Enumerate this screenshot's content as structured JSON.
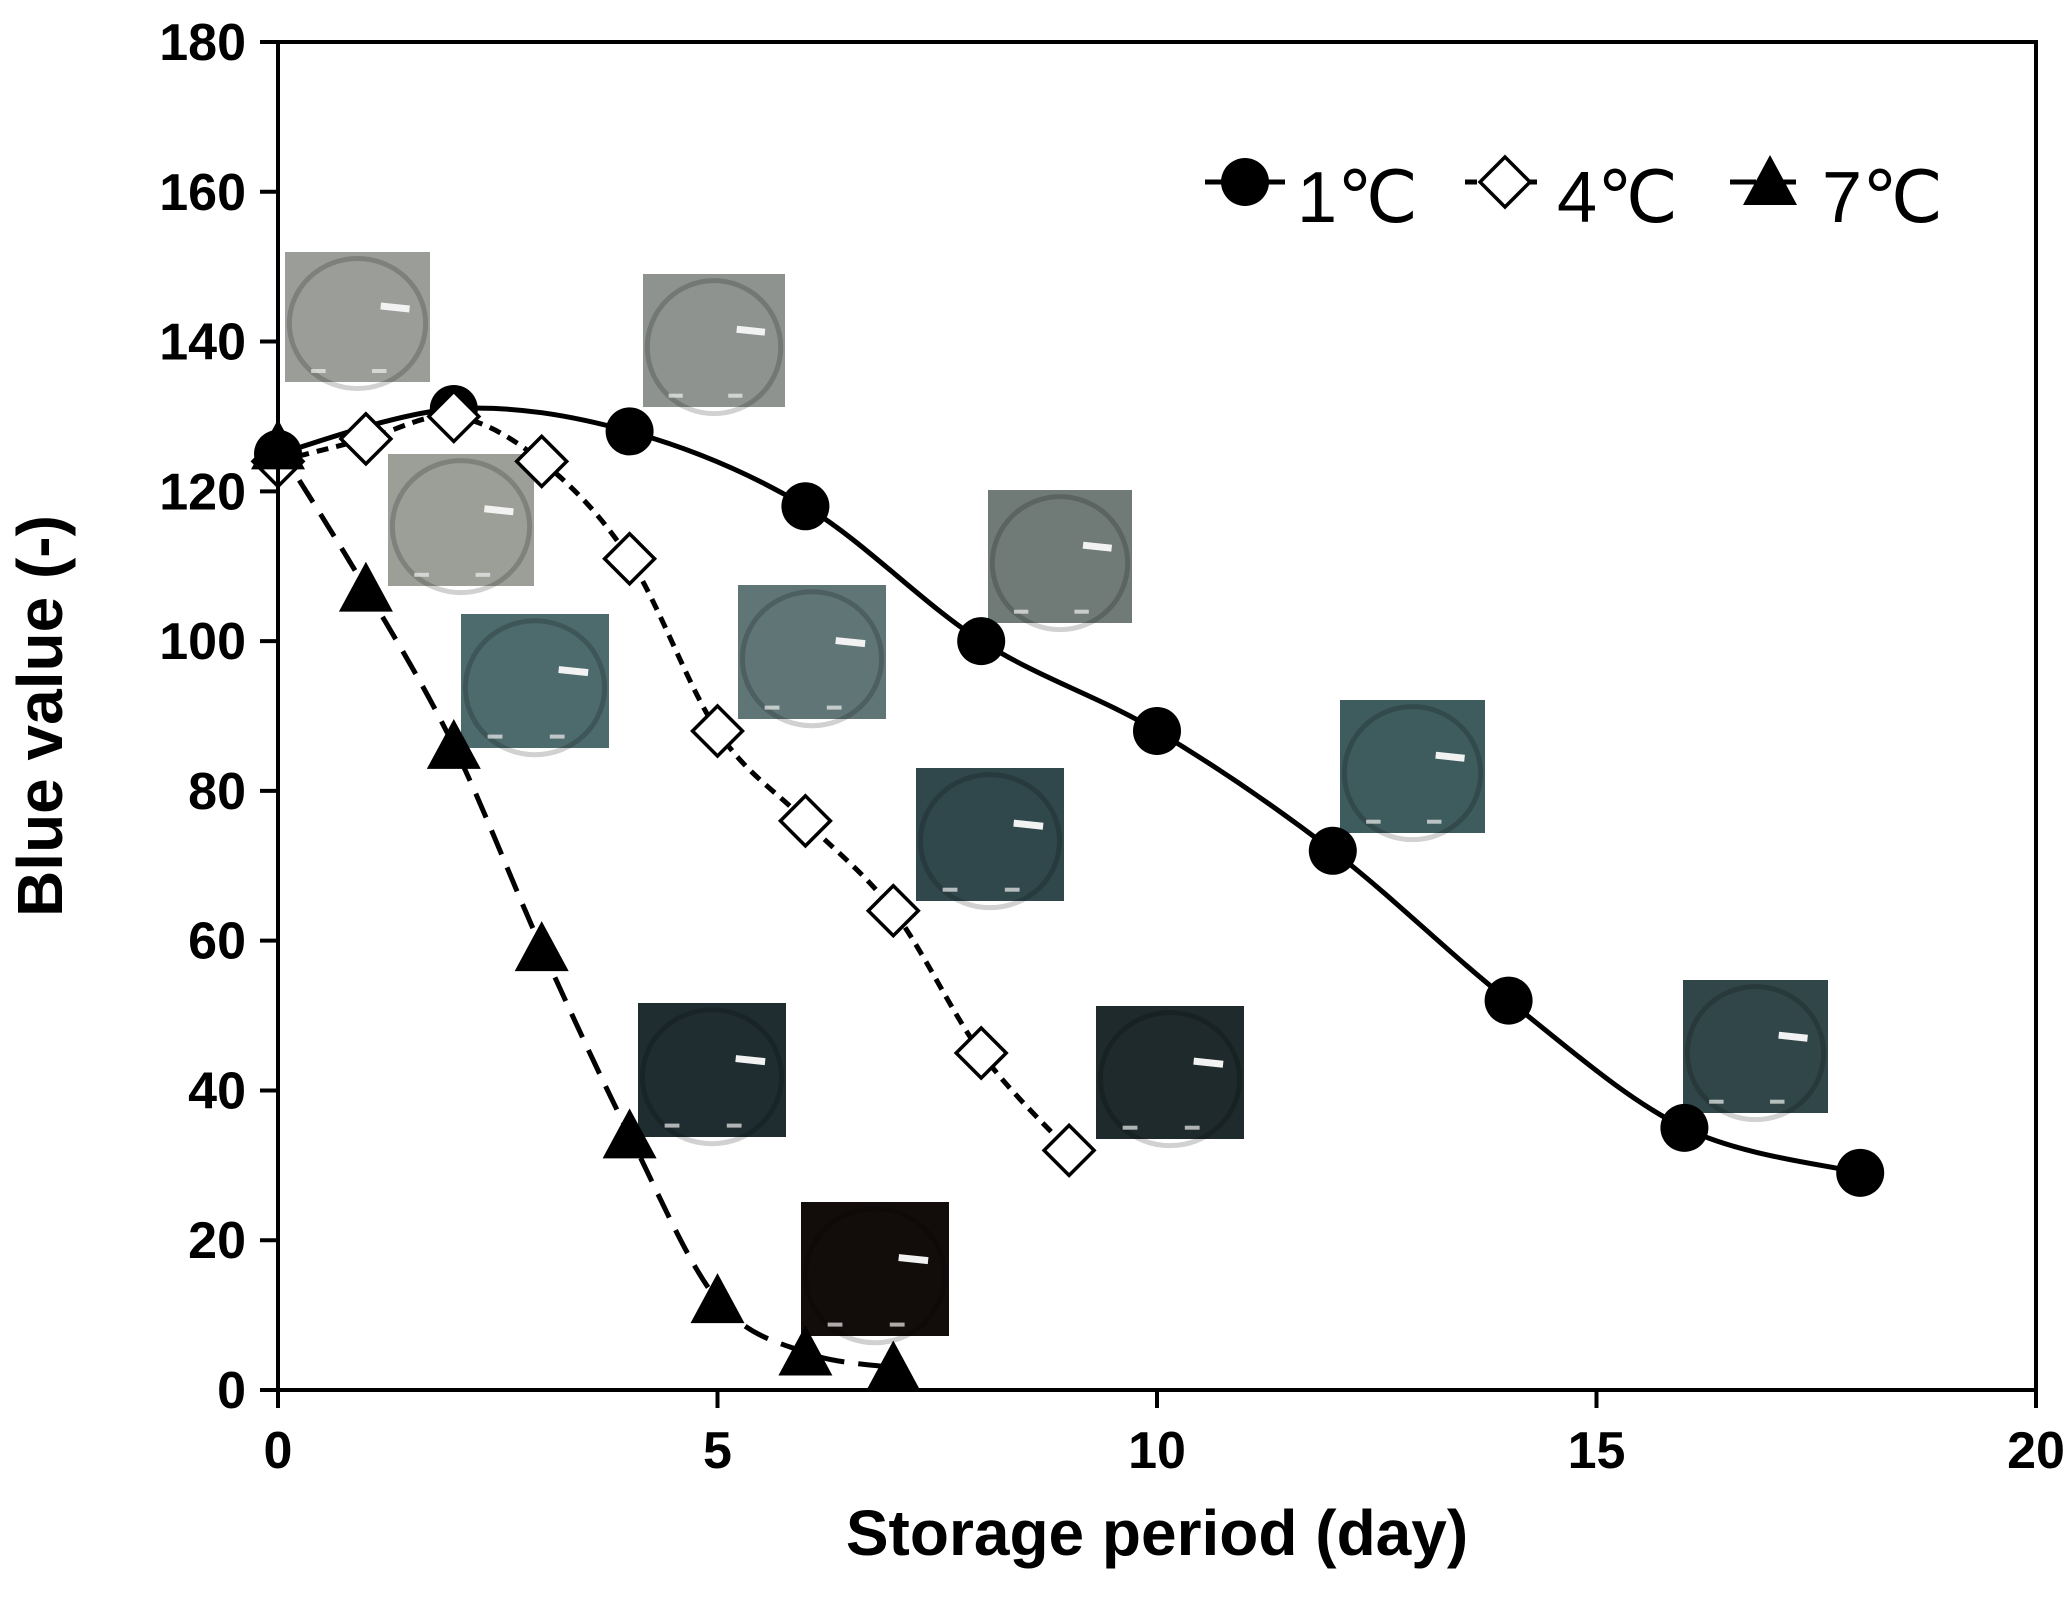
{
  "chart_data": {
    "type": "scatter",
    "xlabel": "Storage period (day)",
    "ylabel": "Blue value (-)",
    "xlim": [
      0,
      20
    ],
    "ylim": [
      0,
      180
    ],
    "xticks": [
      0,
      5,
      10,
      15,
      20
    ],
    "yticks": [
      0,
      20,
      40,
      60,
      80,
      100,
      120,
      140,
      160,
      180
    ],
    "grid": false,
    "legend_position": "top-right",
    "series": [
      {
        "name": "1℃",
        "marker": "filled-circle",
        "line": "solid",
        "x": [
          0,
          2,
          4,
          6,
          8,
          10,
          12,
          14,
          16,
          18
        ],
        "y": [
          125,
          131,
          128,
          118,
          100,
          88,
          72,
          52,
          35,
          29
        ]
      },
      {
        "name": "4℃",
        "marker": "open-diamond",
        "line": "short-dash",
        "x": [
          0,
          1,
          2,
          3,
          4,
          5,
          6,
          7,
          8,
          9
        ],
        "y": [
          124,
          127,
          130,
          124,
          111,
          88,
          76,
          64,
          45,
          32
        ]
      },
      {
        "name": "7℃",
        "marker": "filled-triangle",
        "line": "long-dash",
        "x": [
          0,
          1,
          2,
          3,
          4,
          5,
          6,
          7
        ],
        "y": [
          126,
          107,
          86,
          59,
          34,
          12,
          5,
          3
        ]
      }
    ],
    "photos": [
      {
        "name": "photo-day0",
        "color": "#9a9d98"
      },
      {
        "name": "photo-1c-day4",
        "color": "#8e938f"
      },
      {
        "name": "photo-4c-day2",
        "color": "#9c9e98"
      },
      {
        "name": "photo-7c-day2",
        "color": "#4d6a6d"
      },
      {
        "name": "photo-4c-day5",
        "color": "#5f7576"
      },
      {
        "name": "photo-1c-day8",
        "color": "#707b77"
      },
      {
        "name": "photo-4c-day7",
        "color": "#30474b"
      },
      {
        "name": "photo-1c-day12",
        "color": "#3e5b5d"
      },
      {
        "name": "photo-7c-day4",
        "color": "#1f2d30"
      },
      {
        "name": "photo-4c-day9",
        "color": "#1e2a2b"
      },
      {
        "name": "photo-1c-day16",
        "color": "#304648"
      },
      {
        "name": "photo-7c-day6",
        "color": "#120d0b"
      }
    ]
  }
}
